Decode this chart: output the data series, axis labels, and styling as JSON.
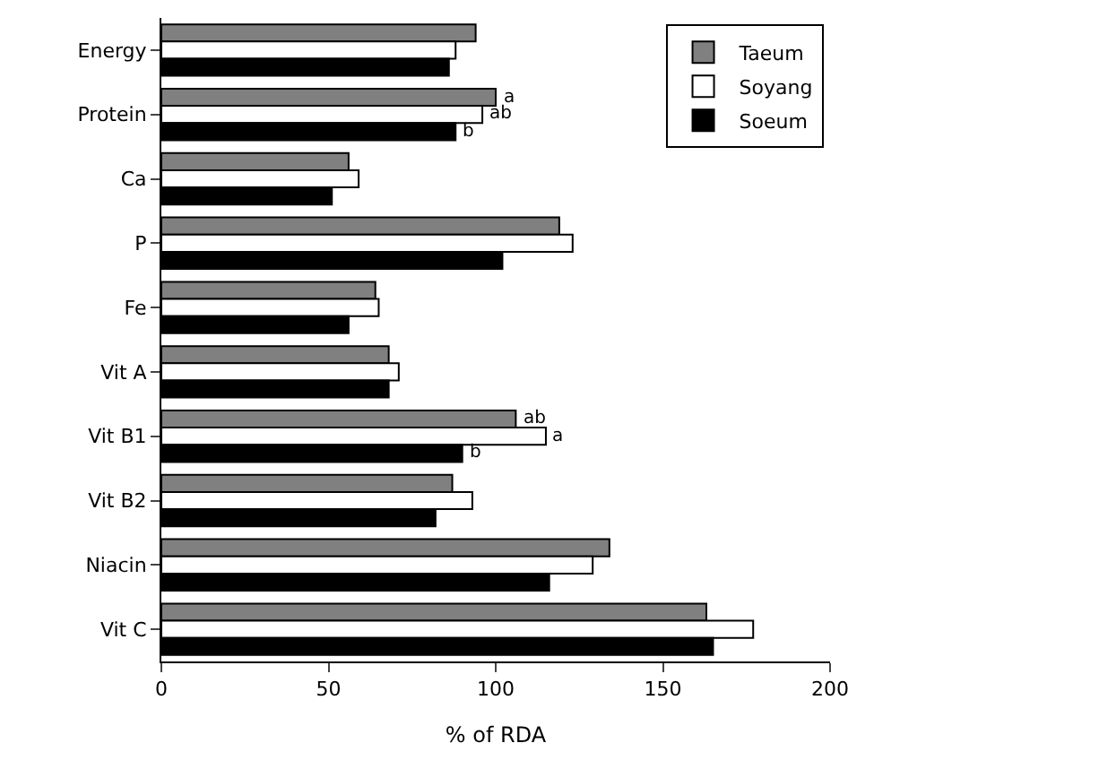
{
  "chart_data": {
    "type": "bar",
    "orientation": "horizontal",
    "xlabel": "% of RDA",
    "categories": [
      "Energy",
      "Protein",
      "Ca",
      "P",
      "Fe",
      "Vit A",
      "Vit B1",
      "Vit B2",
      "Niacin",
      "Vit C"
    ],
    "series": [
      {
        "name": "Taeum",
        "color": "#808080",
        "values": [
          94,
          100,
          56,
          119,
          64,
          68,
          106,
          87,
          134,
          163
        ]
      },
      {
        "name": "Soyang",
        "color": "#ffffff",
        "values": [
          88,
          96,
          59,
          123,
          65,
          71,
          115,
          93,
          129,
          177
        ]
      },
      {
        "name": "Soeum",
        "color": "#000000",
        "values": [
          86,
          88,
          51,
          102,
          56,
          68,
          90,
          82,
          116,
          165
        ]
      }
    ],
    "xlim": [
      0,
      200
    ],
    "xticks": [
      0,
      50,
      100,
      150,
      200
    ],
    "legend": "top right",
    "annotations": [
      {
        "text": "a",
        "x": 100,
        "y": "Protein"
      },
      {
        "text": "ab",
        "x": 96,
        "y": "Protein"
      },
      {
        "text": "b",
        "x": 88,
        "y": "Protein"
      },
      {
        "text": "ab",
        "x": 106,
        "y": "Vit B1"
      },
      {
        "text": "a",
        "x": 115,
        "y": "Vit B1"
      },
      {
        "text": "b",
        "x": 90,
        "y": "Vit B1"
      }
    ]
  }
}
